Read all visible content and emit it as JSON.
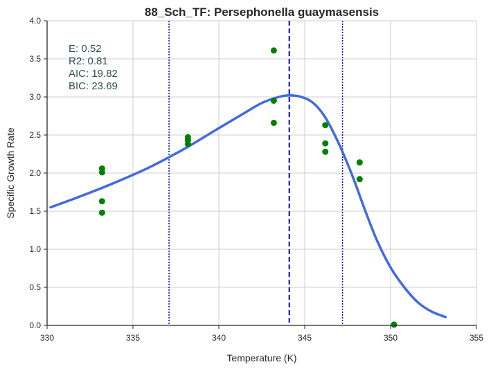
{
  "chart_data": {
    "type": "scatter",
    "title": "88_Sch_TF: Persephonella guaymasensis",
    "xlabel": "Temperature (K)",
    "ylabel": "Specific Growth Rate",
    "xlim": [
      330,
      355
    ],
    "ylim": [
      0.0,
      4.0
    ],
    "xticks": [
      "330",
      "335",
      "340",
      "345",
      "350",
      "355"
    ],
    "yticks": [
      "0.0",
      "0.5",
      "1.0",
      "1.5",
      "2.0",
      "2.5",
      "3.0",
      "3.5",
      "4.0"
    ],
    "grid": true,
    "stats": [
      "E:  0.52",
      "R2:  0.81",
      "AIC: 19.82",
      "BIC: 23.69"
    ],
    "points": [
      {
        "x": 333.2,
        "y": 2.06
      },
      {
        "x": 333.2,
        "y": 2.01
      },
      {
        "x": 333.2,
        "y": 1.63
      },
      {
        "x": 333.2,
        "y": 1.48
      },
      {
        "x": 338.2,
        "y": 2.47
      },
      {
        "x": 338.2,
        "y": 2.43
      },
      {
        "x": 338.2,
        "y": 2.38
      },
      {
        "x": 343.2,
        "y": 3.61
      },
      {
        "x": 343.2,
        "y": 2.95
      },
      {
        "x": 343.2,
        "y": 2.66
      },
      {
        "x": 346.2,
        "y": 2.63
      },
      {
        "x": 346.2,
        "y": 2.39
      },
      {
        "x": 346.2,
        "y": 2.28
      },
      {
        "x": 348.2,
        "y": 2.14
      },
      {
        "x": 348.2,
        "y": 1.92
      },
      {
        "x": 350.2,
        "y": 0.01
      }
    ],
    "fit_curve": [
      {
        "x": 330.2,
        "y": 1.55
      },
      {
        "x": 332.0,
        "y": 1.7
      },
      {
        "x": 334.0,
        "y": 1.88
      },
      {
        "x": 336.0,
        "y": 2.08
      },
      {
        "x": 338.0,
        "y": 2.32
      },
      {
        "x": 340.0,
        "y": 2.59
      },
      {
        "x": 341.5,
        "y": 2.79
      },
      {
        "x": 342.5,
        "y": 2.92
      },
      {
        "x": 343.5,
        "y": 3.0
      },
      {
        "x": 344.1,
        "y": 3.02
      },
      {
        "x": 344.8,
        "y": 3.0
      },
      {
        "x": 345.5,
        "y": 2.92
      },
      {
        "x": 346.2,
        "y": 2.73
      },
      {
        "x": 347.0,
        "y": 2.38
      },
      {
        "x": 347.8,
        "y": 1.95
      },
      {
        "x": 348.5,
        "y": 1.52
      },
      {
        "x": 349.2,
        "y": 1.12
      },
      {
        "x": 350.0,
        "y": 0.76
      },
      {
        "x": 350.8,
        "y": 0.5
      },
      {
        "x": 351.6,
        "y": 0.3
      },
      {
        "x": 352.4,
        "y": 0.18
      },
      {
        "x": 353.2,
        "y": 0.11
      }
    ],
    "peak_line_x": 344.1,
    "bound_lines_x": [
      337.1,
      347.2
    ],
    "colors": {
      "points": "#008000",
      "curve": "#4169e1",
      "peak_line": "#0000dd",
      "bound_lines": "#0000dd",
      "grid": "#cccccc",
      "axis": "#262626"
    }
  }
}
